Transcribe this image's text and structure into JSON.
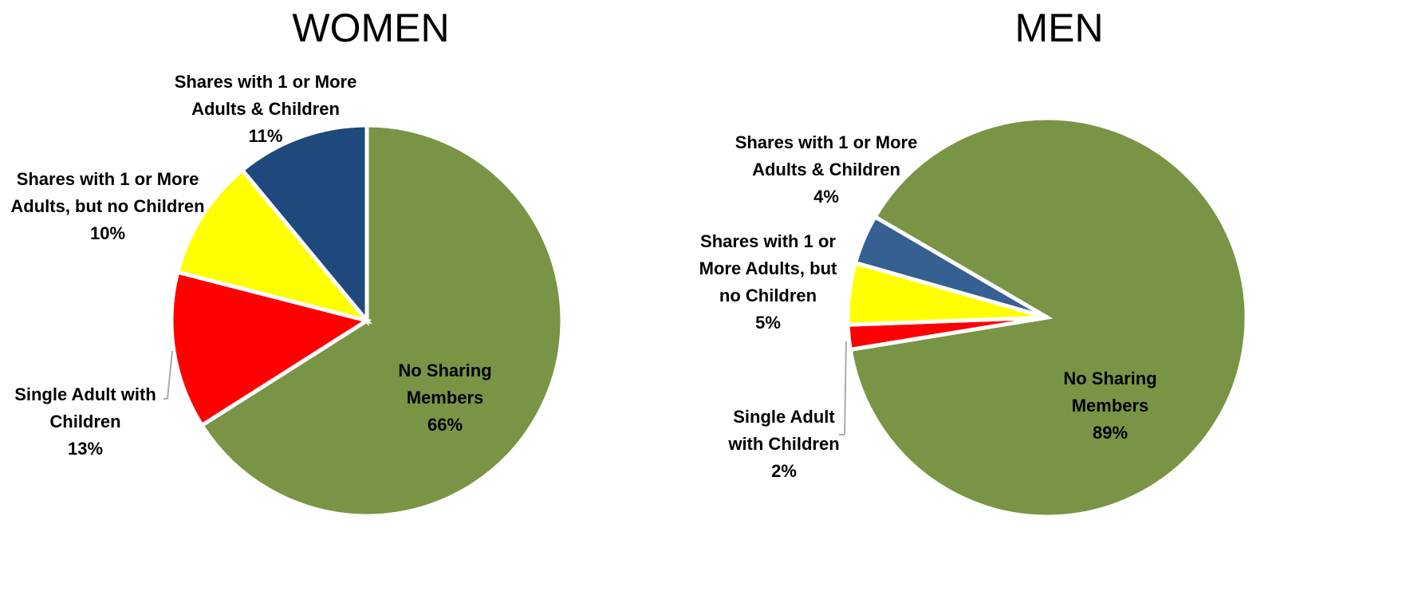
{
  "chart_data": [
    {
      "type": "pie",
      "title": "WOMEN",
      "categories": [
        "No Sharing Members",
        "Single Adult with Children",
        "Shares  with 1 or More Adults, but no Children",
        "Shares  with 1 or More Adults & Children"
      ],
      "values": [
        66,
        13,
        10,
        11
      ],
      "value_labels": [
        "66%",
        "13%",
        "10%",
        "11%"
      ],
      "colors": [
        "#7a9445",
        "#ff0000",
        "#ffff00",
        "#1f497d"
      ]
    },
    {
      "type": "pie",
      "title": "MEN",
      "categories": [
        "No Sharing Members",
        "Single Adult with Children",
        "Shares  with 1 or More Adults, but no Children",
        "Shares  with 1 or More Adults & Children"
      ],
      "values": [
        89,
        2,
        5,
        4
      ],
      "value_labels": [
        "89%",
        "2%",
        "5%",
        "4%"
      ],
      "colors": [
        "#7a9445",
        "#ff0000",
        "#ffff00",
        "#376092"
      ]
    }
  ]
}
